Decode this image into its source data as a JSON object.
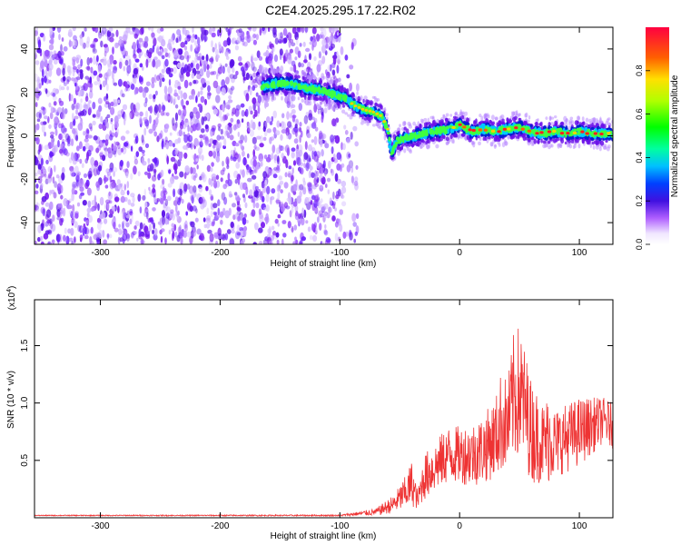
{
  "title": "C2E4.2025.295.17.22.R02",
  "chart_data": [
    {
      "type": "heatmap",
      "id": "spectrogram",
      "xlabel": "Height of straight line (km)",
      "ylabel": "Frequency (Hz)",
      "xlim": [
        -355,
        128
      ],
      "ylim": [
        -50,
        50
      ],
      "xticks": [
        -300,
        -200,
        -100,
        0,
        100
      ],
      "xtick_labels": [
        "-300",
        "-200",
        "-100",
        "0",
        "100"
      ],
      "yticks": [
        -40,
        -20,
        0,
        20,
        40
      ],
      "ytick_labels": [
        "-40",
        "-20",
        "0",
        "20",
        "40"
      ],
      "colorbar": {
        "label": "Normalized spectral amplitude",
        "range": [
          0,
          1
        ],
        "ticks": [
          0.0,
          0.2,
          0.4,
          0.6,
          0.8
        ],
        "tick_labels": [
          "0.0",
          "0.2",
          "0.4",
          "0.6",
          "0.8"
        ]
      },
      "noise_region_x": [
        -355,
        -85
      ],
      "signal_track": {
        "x": [
          -165,
          -150,
          -140,
          -130,
          -115,
          -105,
          -95,
          -88,
          -80,
          -72,
          -65,
          -60,
          -57,
          -52,
          -45,
          -38,
          -30,
          -20,
          -10,
          0,
          10,
          20,
          30,
          40,
          50,
          60,
          70,
          80,
          90,
          100,
          110,
          120,
          128
        ],
        "freq": [
          23,
          24,
          24,
          22,
          21,
          19,
          17,
          14,
          12,
          11,
          9,
          3,
          -8,
          -2,
          -1,
          0,
          1,
          2,
          3,
          5,
          2,
          3,
          2,
          3,
          4,
          2,
          1,
          2,
          1,
          2,
          1,
          1,
          1
        ]
      }
    },
    {
      "type": "line",
      "id": "snr",
      "xlabel": "Height of straight line (km)",
      "ylabel": "SNR (10 * v/v)",
      "multiplier_label": "(x10",
      "multiplier_exp": "4",
      "multiplier_close": ")",
      "xlim": [
        -355,
        128
      ],
      "ylim": [
        0,
        1.9
      ],
      "xticks": [
        -300,
        -200,
        -100,
        0,
        100
      ],
      "xtick_labels": [
        "-300",
        "-200",
        "-100",
        "0",
        "100"
      ],
      "yticks": [
        0.5,
        1.0,
        1.5
      ],
      "ytick_labels": [
        "0.5",
        "1.0",
        "1.5"
      ],
      "color": "#ee3333",
      "envelope": {
        "x": [
          -355,
          -100,
          -70,
          -55,
          -45,
          -40,
          -35,
          -30,
          -20,
          -10,
          0,
          10,
          20,
          30,
          35,
          40,
          45,
          50,
          55,
          60,
          65,
          70,
          75,
          80,
          90,
          100,
          110,
          120,
          128
        ],
        "mean": [
          0.02,
          0.02,
          0.05,
          0.12,
          0.22,
          0.3,
          0.15,
          0.35,
          0.45,
          0.55,
          0.55,
          0.55,
          0.6,
          0.7,
          0.85,
          0.8,
          1.05,
          1.1,
          0.95,
          0.75,
          0.7,
          0.65,
          0.7,
          0.65,
          0.7,
          0.75,
          0.8,
          0.85,
          0.8
        ],
        "amplitude": [
          0.004,
          0.006,
          0.03,
          0.08,
          0.15,
          0.2,
          0.08,
          0.2,
          0.22,
          0.25,
          0.25,
          0.28,
          0.3,
          0.35,
          0.45,
          0.4,
          0.55,
          0.6,
          0.5,
          0.45,
          0.4,
          0.35,
          0.4,
          0.3,
          0.3,
          0.3,
          0.25,
          0.2,
          0.2
        ]
      }
    }
  ]
}
